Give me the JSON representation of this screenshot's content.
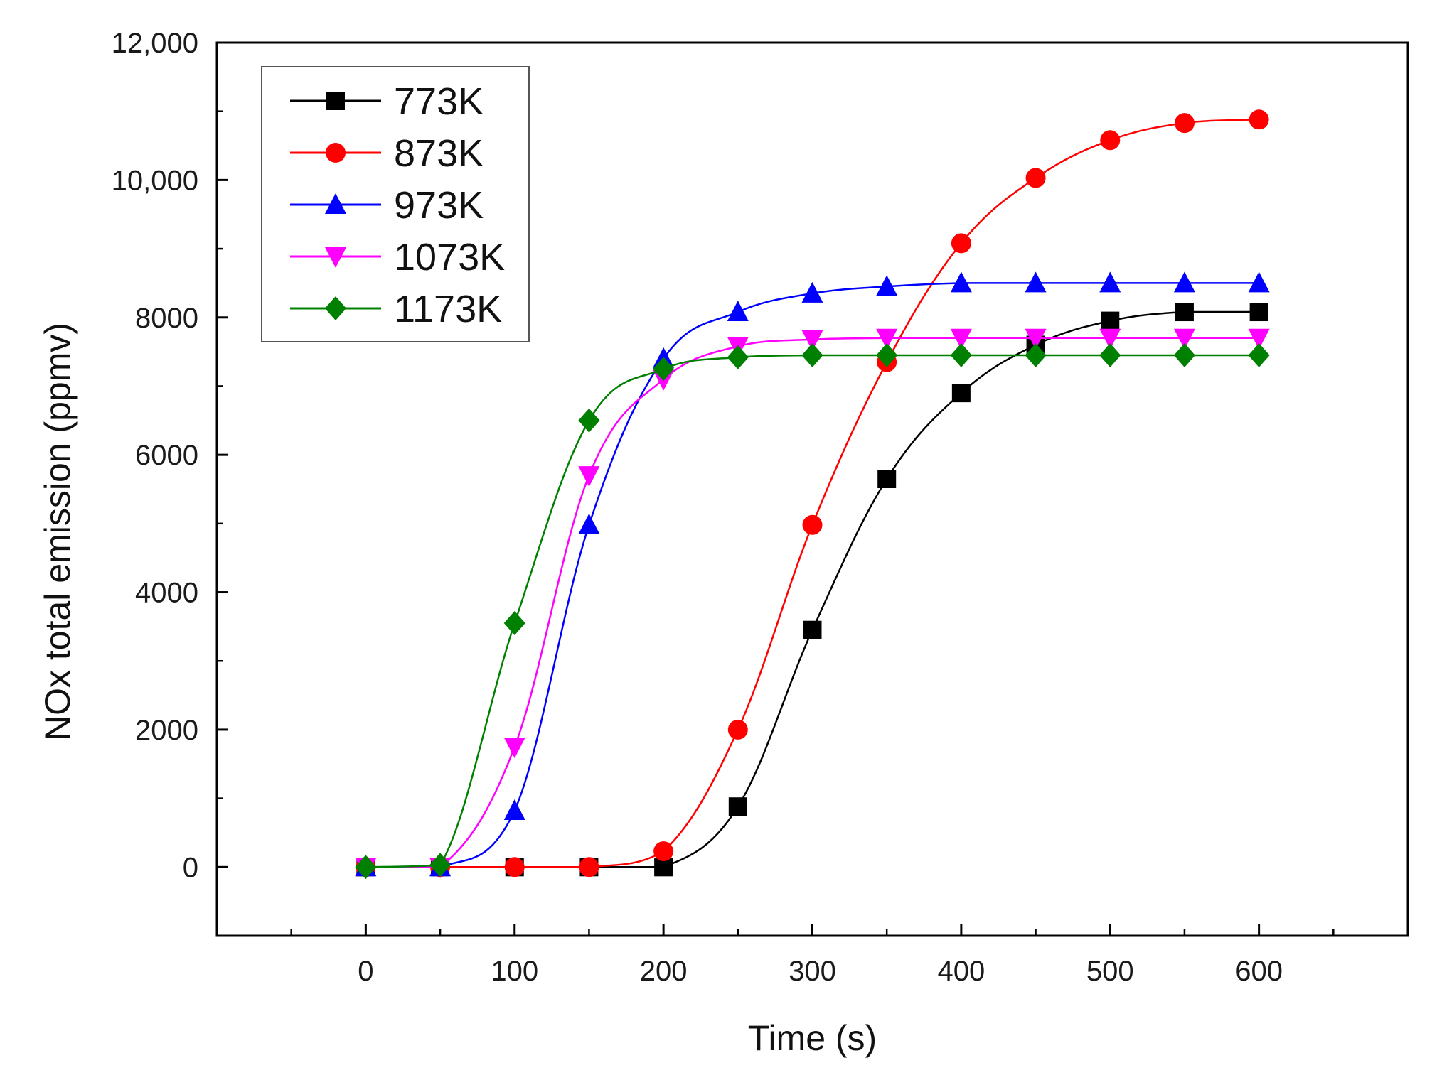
{
  "chart_data": {
    "type": "line",
    "title": "",
    "xlabel": "Time (s)",
    "ylabel": "NOx total emission (ppmv)",
    "xlim": [
      -100,
      700
    ],
    "ylim": [
      -1000,
      12000
    ],
    "x_ticks": [
      0,
      100,
      200,
      300,
      400,
      500,
      600
    ],
    "x_tick_labels": [
      "0",
      "100",
      "200",
      "300",
      "400",
      "500",
      "600"
    ],
    "x_minor_ticks": [
      -50,
      50,
      150,
      250,
      350,
      450,
      550,
      650
    ],
    "y_ticks": [
      0,
      2000,
      4000,
      6000,
      8000,
      10000,
      12000
    ],
    "y_tick_labels": [
      "0",
      "2000",
      "4000",
      "6000",
      "8000",
      "10,000",
      "12,000"
    ],
    "y_minor_ticks": [
      1000,
      3000,
      5000,
      7000,
      9000,
      11000
    ],
    "legend_position": "top-left",
    "grid": false,
    "x": [
      0,
      50,
      100,
      150,
      200,
      250,
      300,
      350,
      400,
      450,
      500,
      550,
      600
    ],
    "series": [
      {
        "name": "773K",
        "color": "#000000",
        "marker": "square",
        "values": [
          0,
          0,
          0,
          0,
          0,
          880,
          3450,
          5650,
          6900,
          7600,
          7950,
          8080,
          8080
        ]
      },
      {
        "name": "873K",
        "color": "#ff0000",
        "marker": "circle",
        "values": [
          0,
          0,
          0,
          0,
          230,
          2000,
          4980,
          7350,
          9080,
          10030,
          10580,
          10830,
          10880
        ]
      },
      {
        "name": "973K",
        "color": "#0000ff",
        "marker": "triangle-up",
        "values": [
          0,
          0,
          820,
          4980,
          7400,
          8080,
          8350,
          8450,
          8500,
          8500,
          8500,
          8500,
          8500
        ]
      },
      {
        "name": "1073K",
        "color": "#ff00ff",
        "marker": "triangle-down",
        "values": [
          0,
          0,
          1750,
          5700,
          7100,
          7580,
          7680,
          7700,
          7700,
          7700,
          7700,
          7700,
          7700
        ]
      },
      {
        "name": "1173K",
        "color": "#008000",
        "marker": "diamond",
        "values": [
          0,
          30,
          3550,
          6500,
          7250,
          7420,
          7450,
          7450,
          7450,
          7450,
          7450,
          7450,
          7450
        ]
      }
    ]
  }
}
